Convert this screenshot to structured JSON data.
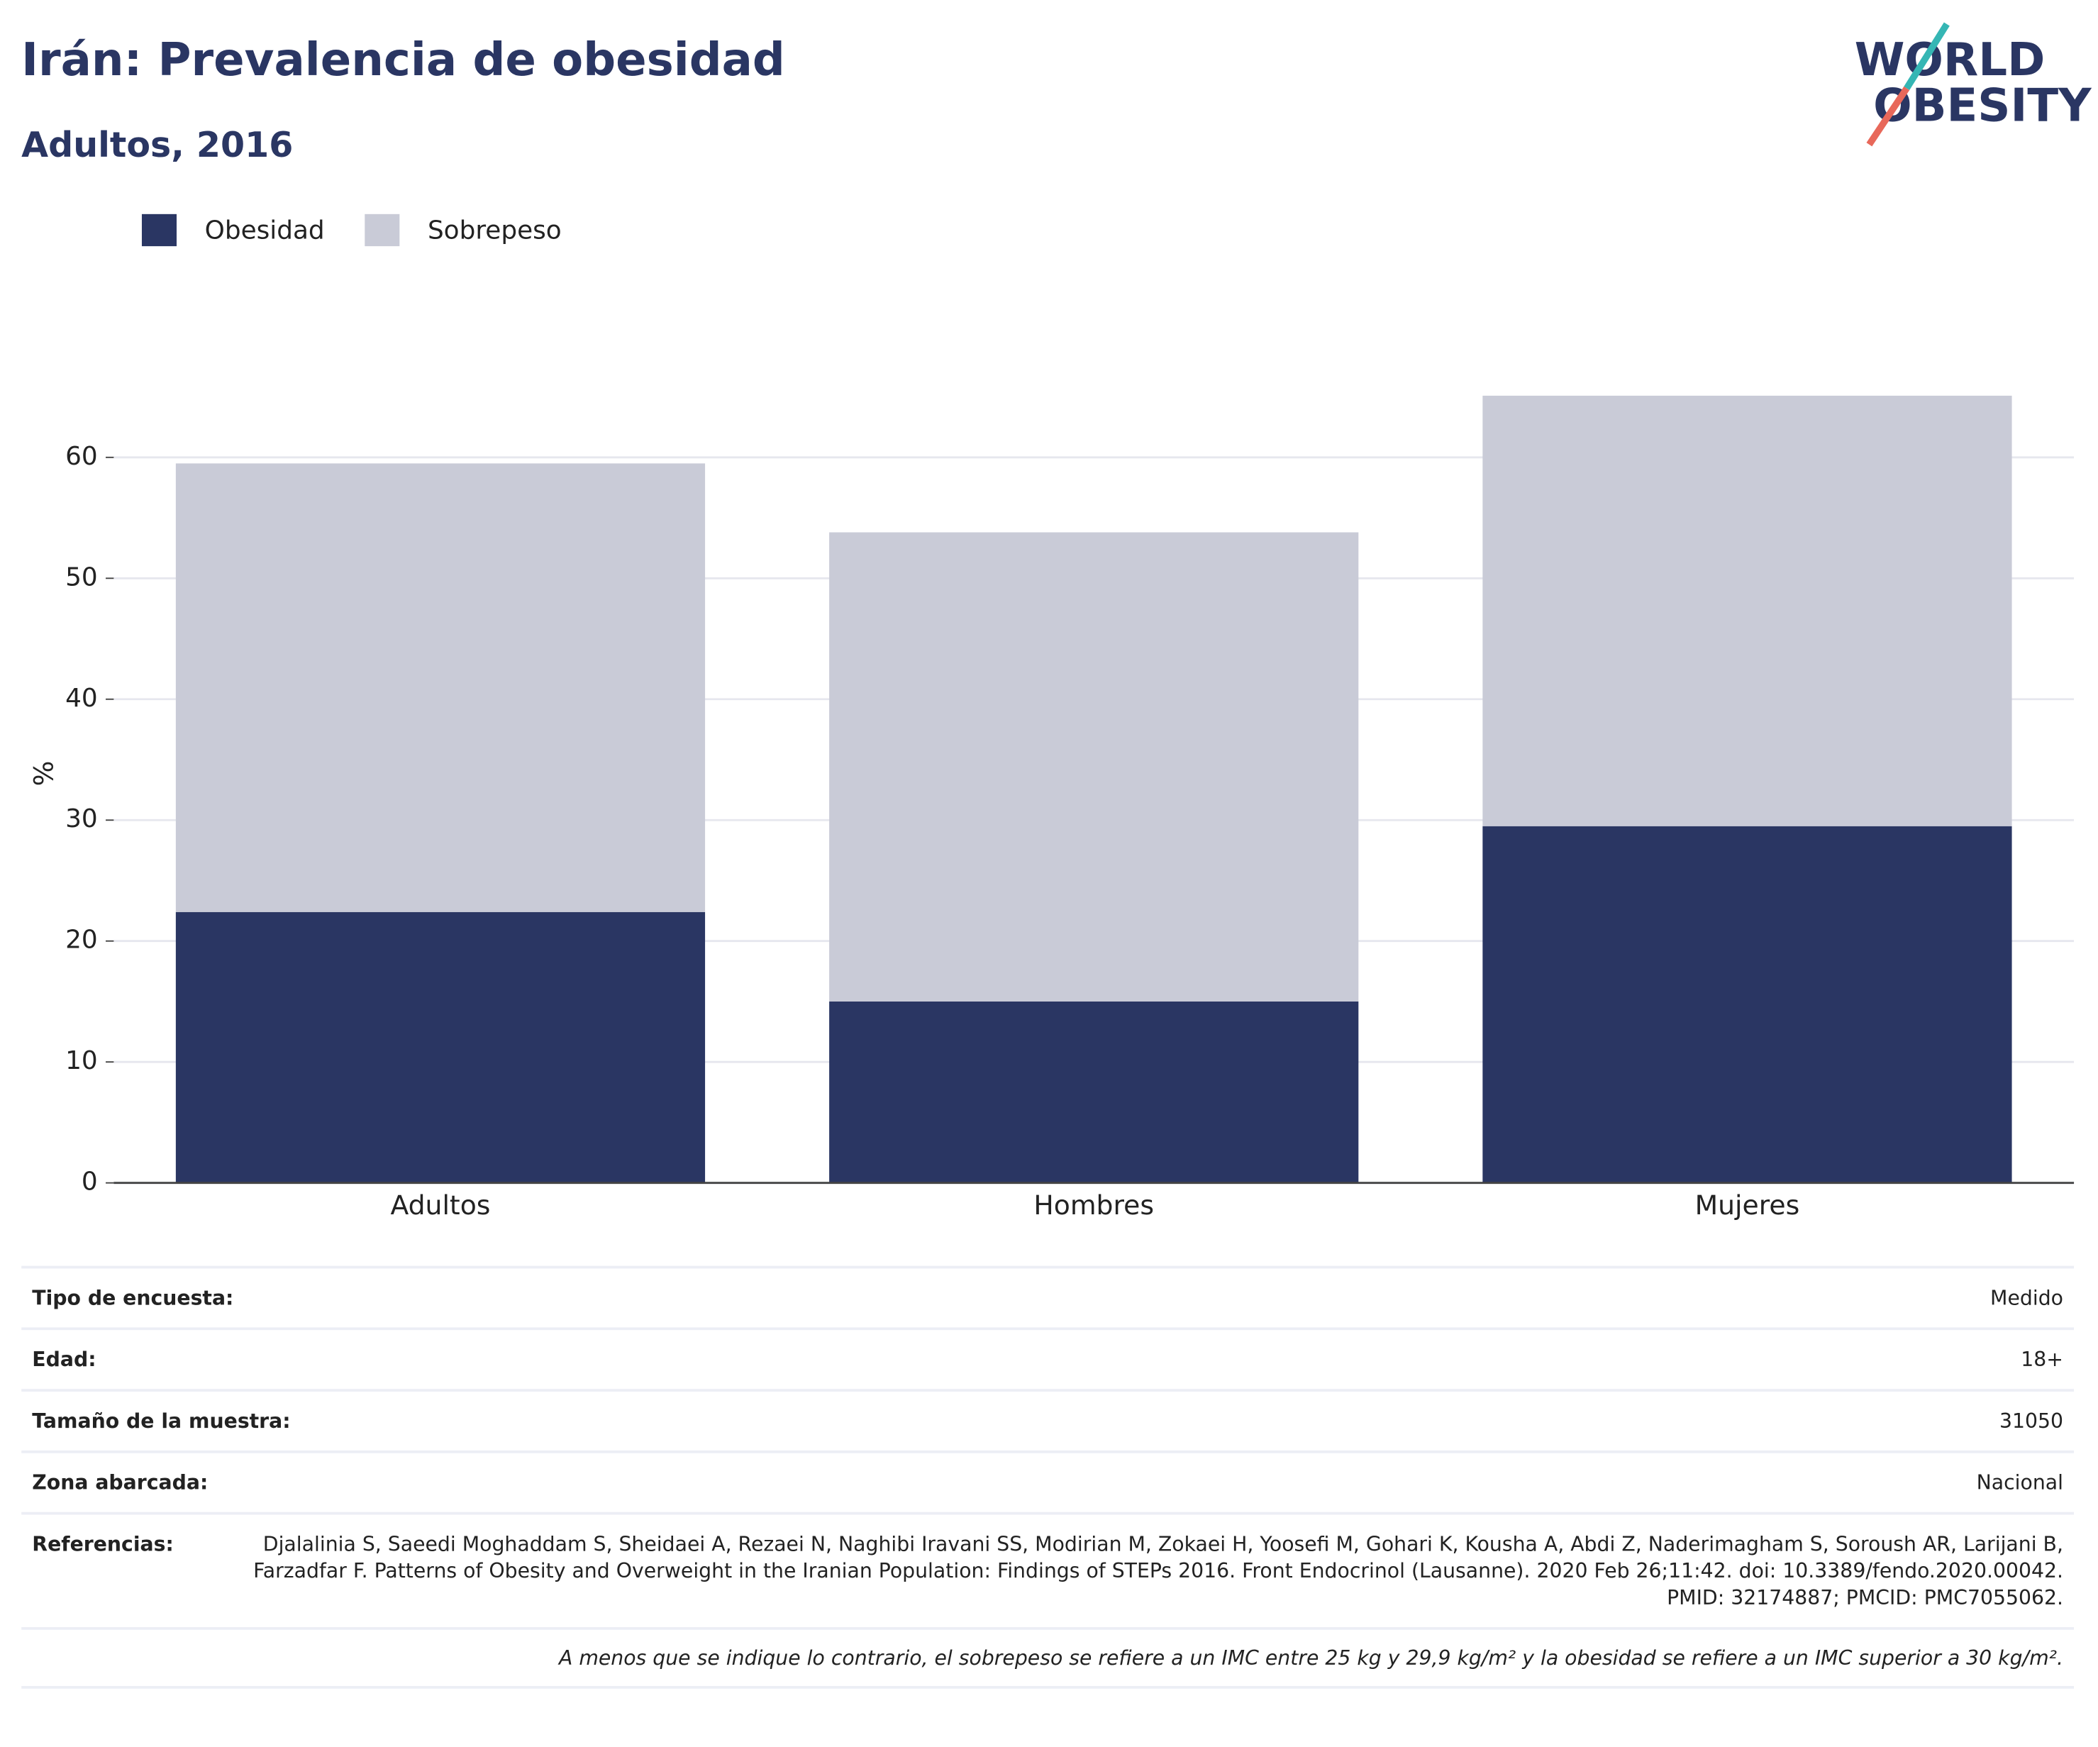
{
  "chart_data": {
    "type": "stacked_bar",
    "title": "Irán: Prevalencia de obesidad",
    "subtitle": "Adultos, 2016",
    "y_label": "%",
    "categories": [
      "Adultos",
      "Hombres",
      "Mujeres"
    ],
    "series": [
      {
        "name": "Obesidad",
        "color": "#2a3663",
        "values": [
          22.4,
          15.0,
          29.5
        ]
      },
      {
        "name": "Sobrepeso",
        "color": "#c9cbd7",
        "values": [
          37.1,
          38.8,
          35.6
        ]
      }
    ],
    "ylim": [
      0,
      68.5
    ],
    "yticks": [
      0,
      10,
      20,
      30,
      40,
      50,
      60
    ],
    "grid": true
  },
  "logo": [
    "WORLD",
    "OBESITY"
  ],
  "info_table": {
    "rows": [
      [
        "Tipo de encuesta:",
        "Medido"
      ],
      [
        "Edad:",
        "18+"
      ],
      [
        "Tamaño de la muestra:",
        "31050"
      ],
      [
        "Zona abarcada:",
        "Nacional"
      ],
      [
        "Referencias:",
        "Djalalinia S, Saeedi Moghaddam S, Sheidaei A, Rezaei N, Naghibi Iravani SS, Modirian M, Zokaei H, Yoosefi M, Gohari K, Kousha A, Abdi Z, Naderimagham S, Soroush AR, Larijani B, Farzadfar F. Patterns of Obesity and Overweight in the Iranian Population: Findings of STEPs 2016. Front Endocrinol (Lausanne). 2020 Feb 26;11:42. doi: 10.3389/fendo.2020.00042. PMID: 32174887; PMCID: PMC7055062."
      ]
    ],
    "footnote": "A menos que se indique lo contrario, el sobrepeso se refiere a un IMC entre 25 kg y 29,9 kg/m² y la obesidad se refiere a un IMC superior a 30 kg/m²."
  }
}
